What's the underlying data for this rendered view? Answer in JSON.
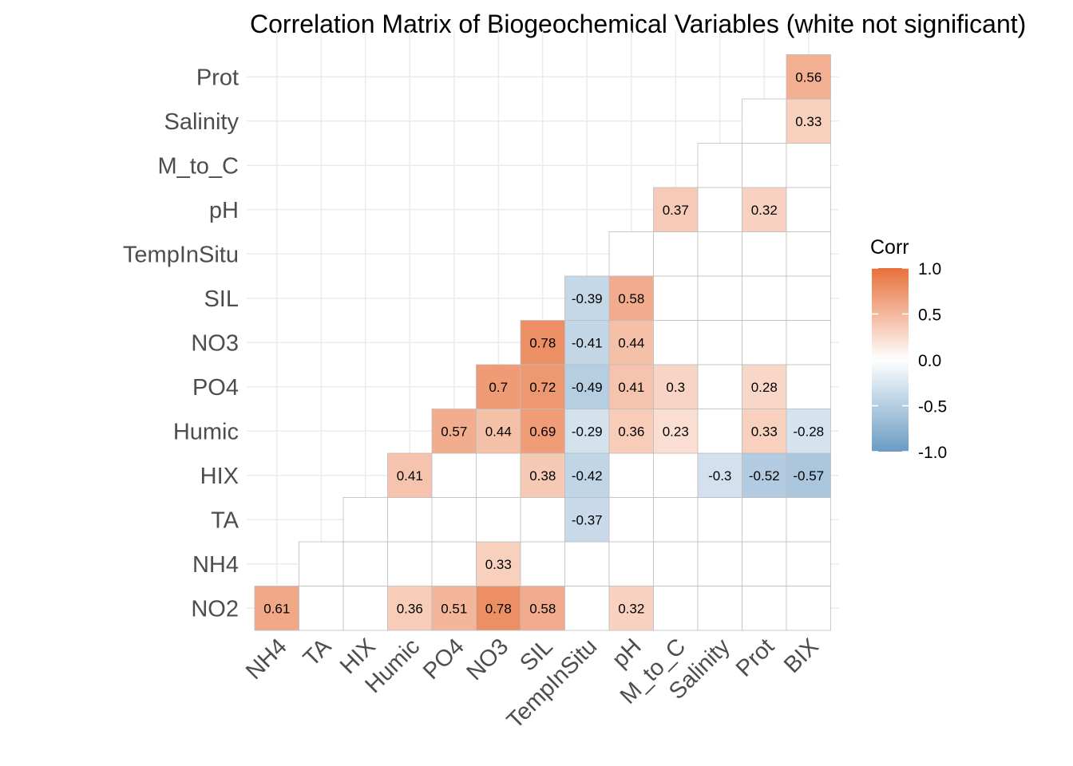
{
  "chart_data": {
    "type": "heatmap",
    "title": "Correlation Matrix of Biogeochemical Variables (white not significant)",
    "xlabel": "",
    "ylabel": "",
    "x_categories": [
      "NH4",
      "TA",
      "HIX",
      "Humic",
      "PO4",
      "NO3",
      "SIL",
      "TempInSitu",
      "pH",
      "M_to_C",
      "Salinity",
      "Prot",
      "BIX"
    ],
    "y_categories": [
      "NO2",
      "NH4",
      "TA",
      "HIX",
      "Humic",
      "PO4",
      "NO3",
      "SIL",
      "TempInSitu",
      "pH",
      "M_to_C",
      "Salinity",
      "Prot"
    ],
    "value_range": [
      -1.0,
      1.0
    ],
    "colors": {
      "low": "#6a9bc3",
      "mid": "#ffffff",
      "high": "#e8703a"
    },
    "legend": {
      "title": "Corr",
      "ticks": [
        "1.0",
        "0.5",
        "0.0",
        "-0.5",
        "-1.0"
      ],
      "position": "right"
    },
    "grid": true,
    "cells": [
      {
        "row": "NO2",
        "col": "NH4",
        "value": 0.61,
        "label": "0.61"
      },
      {
        "row": "NO2",
        "col": "TA",
        "value": null,
        "label": ""
      },
      {
        "row": "NO2",
        "col": "HIX",
        "value": null,
        "label": ""
      },
      {
        "row": "NO2",
        "col": "Humic",
        "value": 0.36,
        "label": "0.36"
      },
      {
        "row": "NO2",
        "col": "PO4",
        "value": 0.51,
        "label": "0.51"
      },
      {
        "row": "NO2",
        "col": "NO3",
        "value": 0.78,
        "label": "0.78"
      },
      {
        "row": "NO2",
        "col": "SIL",
        "value": 0.58,
        "label": "0.58"
      },
      {
        "row": "NO2",
        "col": "TempInSitu",
        "value": null,
        "label": ""
      },
      {
        "row": "NO2",
        "col": "pH",
        "value": 0.32,
        "label": "0.32"
      },
      {
        "row": "NO2",
        "col": "M_to_C",
        "value": null,
        "label": ""
      },
      {
        "row": "NO2",
        "col": "Salinity",
        "value": null,
        "label": ""
      },
      {
        "row": "NO2",
        "col": "Prot",
        "value": null,
        "label": ""
      },
      {
        "row": "NO2",
        "col": "BIX",
        "value": null,
        "label": ""
      },
      {
        "row": "NH4",
        "col": "TA",
        "value": null,
        "label": ""
      },
      {
        "row": "NH4",
        "col": "HIX",
        "value": null,
        "label": ""
      },
      {
        "row": "NH4",
        "col": "Humic",
        "value": null,
        "label": ""
      },
      {
        "row": "NH4",
        "col": "PO4",
        "value": null,
        "label": ""
      },
      {
        "row": "NH4",
        "col": "NO3",
        "value": 0.33,
        "label": "0.33"
      },
      {
        "row": "NH4",
        "col": "SIL",
        "value": null,
        "label": ""
      },
      {
        "row": "NH4",
        "col": "TempInSitu",
        "value": null,
        "label": ""
      },
      {
        "row": "NH4",
        "col": "pH",
        "value": null,
        "label": ""
      },
      {
        "row": "NH4",
        "col": "M_to_C",
        "value": null,
        "label": ""
      },
      {
        "row": "NH4",
        "col": "Salinity",
        "value": null,
        "label": ""
      },
      {
        "row": "NH4",
        "col": "Prot",
        "value": null,
        "label": ""
      },
      {
        "row": "NH4",
        "col": "BIX",
        "value": null,
        "label": ""
      },
      {
        "row": "TA",
        "col": "HIX",
        "value": null,
        "label": ""
      },
      {
        "row": "TA",
        "col": "Humic",
        "value": null,
        "label": ""
      },
      {
        "row": "TA",
        "col": "PO4",
        "value": null,
        "label": ""
      },
      {
        "row": "TA",
        "col": "NO3",
        "value": null,
        "label": ""
      },
      {
        "row": "TA",
        "col": "SIL",
        "value": null,
        "label": ""
      },
      {
        "row": "TA",
        "col": "TempInSitu",
        "value": -0.37,
        "label": "-0.37"
      },
      {
        "row": "TA",
        "col": "pH",
        "value": null,
        "label": ""
      },
      {
        "row": "TA",
        "col": "M_to_C",
        "value": null,
        "label": ""
      },
      {
        "row": "TA",
        "col": "Salinity",
        "value": null,
        "label": ""
      },
      {
        "row": "TA",
        "col": "Prot",
        "value": null,
        "label": ""
      },
      {
        "row": "TA",
        "col": "BIX",
        "value": null,
        "label": ""
      },
      {
        "row": "HIX",
        "col": "Humic",
        "value": 0.41,
        "label": "0.41"
      },
      {
        "row": "HIX",
        "col": "PO4",
        "value": null,
        "label": ""
      },
      {
        "row": "HIX",
        "col": "NO3",
        "value": null,
        "label": ""
      },
      {
        "row": "HIX",
        "col": "SIL",
        "value": 0.38,
        "label": "0.38"
      },
      {
        "row": "HIX",
        "col": "TempInSitu",
        "value": -0.42,
        "label": "-0.42"
      },
      {
        "row": "HIX",
        "col": "pH",
        "value": null,
        "label": ""
      },
      {
        "row": "HIX",
        "col": "M_to_C",
        "value": null,
        "label": ""
      },
      {
        "row": "HIX",
        "col": "Salinity",
        "value": -0.3,
        "label": "-0.3"
      },
      {
        "row": "HIX",
        "col": "Prot",
        "value": -0.52,
        "label": "-0.52"
      },
      {
        "row": "HIX",
        "col": "BIX",
        "value": -0.57,
        "label": "-0.57"
      },
      {
        "row": "Humic",
        "col": "PO4",
        "value": 0.57,
        "label": "0.57"
      },
      {
        "row": "Humic",
        "col": "NO3",
        "value": 0.44,
        "label": "0.44"
      },
      {
        "row": "Humic",
        "col": "SIL",
        "value": 0.69,
        "label": "0.69"
      },
      {
        "row": "Humic",
        "col": "TempInSitu",
        "value": -0.29,
        "label": "-0.29"
      },
      {
        "row": "Humic",
        "col": "pH",
        "value": 0.36,
        "label": "0.36"
      },
      {
        "row": "Humic",
        "col": "M_to_C",
        "value": 0.23,
        "label": "0.23"
      },
      {
        "row": "Humic",
        "col": "Salinity",
        "value": null,
        "label": ""
      },
      {
        "row": "Humic",
        "col": "Prot",
        "value": 0.33,
        "label": "0.33"
      },
      {
        "row": "Humic",
        "col": "BIX",
        "value": -0.28,
        "label": "-0.28"
      },
      {
        "row": "PO4",
        "col": "NO3",
        "value": 0.7,
        "label": "0.7"
      },
      {
        "row": "PO4",
        "col": "SIL",
        "value": 0.72,
        "label": "0.72"
      },
      {
        "row": "PO4",
        "col": "TempInSitu",
        "value": -0.49,
        "label": "-0.49"
      },
      {
        "row": "PO4",
        "col": "pH",
        "value": 0.41,
        "label": "0.41"
      },
      {
        "row": "PO4",
        "col": "M_to_C",
        "value": 0.3,
        "label": "0.3"
      },
      {
        "row": "PO4",
        "col": "Salinity",
        "value": null,
        "label": ""
      },
      {
        "row": "PO4",
        "col": "Prot",
        "value": 0.28,
        "label": "0.28"
      },
      {
        "row": "PO4",
        "col": "BIX",
        "value": null,
        "label": ""
      },
      {
        "row": "NO3",
        "col": "SIL",
        "value": 0.78,
        "label": "0.78"
      },
      {
        "row": "NO3",
        "col": "TempInSitu",
        "value": -0.41,
        "label": "-0.41"
      },
      {
        "row": "NO3",
        "col": "pH",
        "value": 0.44,
        "label": "0.44"
      },
      {
        "row": "NO3",
        "col": "M_to_C",
        "value": null,
        "label": ""
      },
      {
        "row": "NO3",
        "col": "Salinity",
        "value": null,
        "label": ""
      },
      {
        "row": "NO3",
        "col": "Prot",
        "value": null,
        "label": ""
      },
      {
        "row": "NO3",
        "col": "BIX",
        "value": null,
        "label": ""
      },
      {
        "row": "SIL",
        "col": "TempInSitu",
        "value": -0.39,
        "label": "-0.39"
      },
      {
        "row": "SIL",
        "col": "pH",
        "value": 0.58,
        "label": "0.58"
      },
      {
        "row": "SIL",
        "col": "M_to_C",
        "value": null,
        "label": ""
      },
      {
        "row": "SIL",
        "col": "Salinity",
        "value": null,
        "label": ""
      },
      {
        "row": "SIL",
        "col": "Prot",
        "value": null,
        "label": ""
      },
      {
        "row": "SIL",
        "col": "BIX",
        "value": null,
        "label": ""
      },
      {
        "row": "TempInSitu",
        "col": "pH",
        "value": null,
        "label": ""
      },
      {
        "row": "TempInSitu",
        "col": "M_to_C",
        "value": null,
        "label": ""
      },
      {
        "row": "TempInSitu",
        "col": "Salinity",
        "value": null,
        "label": ""
      },
      {
        "row": "TempInSitu",
        "col": "Prot",
        "value": null,
        "label": ""
      },
      {
        "row": "TempInSitu",
        "col": "BIX",
        "value": null,
        "label": ""
      },
      {
        "row": "pH",
        "col": "M_to_C",
        "value": 0.37,
        "label": "0.37"
      },
      {
        "row": "pH",
        "col": "Salinity",
        "value": null,
        "label": ""
      },
      {
        "row": "pH",
        "col": "Prot",
        "value": 0.32,
        "label": "0.32"
      },
      {
        "row": "pH",
        "col": "BIX",
        "value": null,
        "label": ""
      },
      {
        "row": "M_to_C",
        "col": "Salinity",
        "value": null,
        "label": ""
      },
      {
        "row": "M_to_C",
        "col": "Prot",
        "value": null,
        "label": ""
      },
      {
        "row": "M_to_C",
        "col": "BIX",
        "value": null,
        "label": ""
      },
      {
        "row": "Salinity",
        "col": "Prot",
        "value": null,
        "label": ""
      },
      {
        "row": "Salinity",
        "col": "BIX",
        "value": 0.33,
        "label": "0.33"
      },
      {
        "row": "Prot",
        "col": "BIX",
        "value": 0.56,
        "label": "0.56"
      }
    ]
  }
}
